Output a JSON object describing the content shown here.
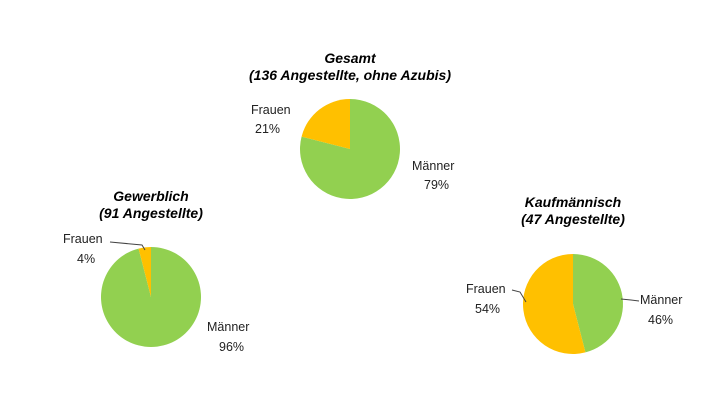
{
  "chart_data": [
    {
      "type": "pie",
      "title": "Gesamt",
      "subtitle": "(136 Angestellte, ohne Azubis)",
      "slices": [
        {
          "label": "Frauen",
          "value": 21,
          "value_label": "21%",
          "color": "#FFC000"
        },
        {
          "label": "Männer",
          "value": 79,
          "value_label": "79%",
          "color": "#92D050"
        }
      ]
    },
    {
      "type": "pie",
      "title": "Gewerblich",
      "subtitle": "(91 Angestellte)",
      "slices": [
        {
          "label": "Frauen",
          "value": 4,
          "value_label": "4%",
          "color": "#FFC000"
        },
        {
          "label": "Männer",
          "value": 96,
          "value_label": "96%",
          "color": "#92D050"
        }
      ]
    },
    {
      "type": "pie",
      "title": "Kaufmännisch",
      "subtitle": "(47 Angestellte)",
      "slices": [
        {
          "label": "Frauen",
          "value": 54,
          "value_label": "54%",
          "color": "#FFC000"
        },
        {
          "label": "Männer",
          "value": 46,
          "value_label": "46%",
          "color": "#92D050"
        }
      ]
    }
  ]
}
